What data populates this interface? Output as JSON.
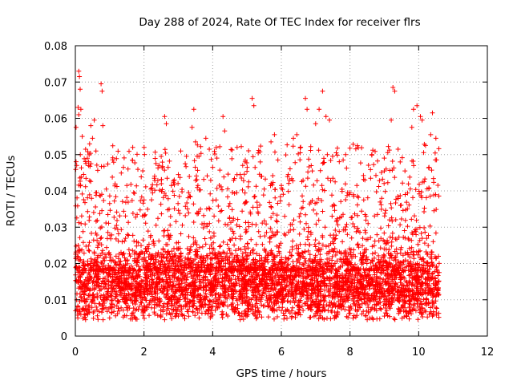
{
  "chart_data": {
    "type": "scatter",
    "title": "Day 288 of 2024, Rate Of TEC Index for receiver flrs",
    "xlabel": "GPS time / hours",
    "ylabel": "ROTI / TECUs",
    "xlim": [
      0,
      12
    ],
    "ylim": [
      0,
      0.08
    ],
    "x_ticks": [
      0,
      2,
      4,
      6,
      8,
      10,
      12
    ],
    "x_tick_labels": [
      "0",
      "2",
      "4",
      "6",
      "8",
      "10",
      "12"
    ],
    "y_ticks": [
      0,
      0.01,
      0.02,
      0.03,
      0.04,
      0.05,
      0.06,
      0.07,
      0.08
    ],
    "y_tick_labels": [
      "0",
      "0.01",
      "0.02",
      "0.03",
      "0.04",
      "0.05",
      "0.06",
      "0.07",
      "0.08"
    ],
    "grid": true,
    "marker": "+",
    "marker_color": "#ff0000",
    "series": [
      {
        "name": "ROTI",
        "x_range": [
          0,
          10.6
        ],
        "points": [
          [
            0.02,
            0.0575
          ],
          [
            0.04,
            0.047
          ],
          [
            0.08,
            0.063
          ],
          [
            0.1,
            0.073
          ],
          [
            0.12,
            0.0715
          ],
          [
            0.14,
            0.068
          ],
          [
            0.16,
            0.0625
          ],
          [
            0.1,
            0.061
          ],
          [
            0.2,
            0.055
          ],
          [
            0.3,
            0.0515
          ],
          [
            0.35,
            0.049
          ],
          [
            0.45,
            0.058
          ],
          [
            0.5,
            0.0545
          ],
          [
            0.55,
            0.0595
          ],
          [
            0.6,
            0.051
          ],
          [
            0.75,
            0.0695
          ],
          [
            0.78,
            0.0675
          ],
          [
            0.8,
            0.058
          ],
          [
            0.9,
            0.0405
          ],
          [
            1.0,
            0.0365
          ],
          [
            1.2,
            0.0305
          ],
          [
            1.4,
            0.0465
          ],
          [
            1.5,
            0.0415
          ],
          [
            1.7,
            0.0395
          ],
          [
            1.8,
            0.0335
          ],
          [
            2.0,
            0.0375
          ],
          [
            2.2,
            0.0405
          ],
          [
            2.3,
            0.0435
          ],
          [
            2.5,
            0.0495
          ],
          [
            2.6,
            0.0605
          ],
          [
            2.65,
            0.0585
          ],
          [
            2.7,
            0.0465
          ],
          [
            2.8,
            0.0415
          ],
          [
            3.0,
            0.0445
          ],
          [
            3.2,
            0.0475
          ],
          [
            3.3,
            0.0395
          ],
          [
            3.4,
            0.0575
          ],
          [
            3.45,
            0.0625
          ],
          [
            3.5,
            0.0535
          ],
          [
            3.6,
            0.0495
          ],
          [
            3.8,
            0.0545
          ],
          [
            3.9,
            0.0515
          ],
          [
            4.0,
            0.0465
          ],
          [
            4.1,
            0.0375
          ],
          [
            4.3,
            0.0605
          ],
          [
            4.35,
            0.0565
          ],
          [
            4.5,
            0.0365
          ],
          [
            4.7,
            0.0395
          ],
          [
            4.8,
            0.0445
          ],
          [
            4.95,
            0.0485
          ],
          [
            5.05,
            0.0425
          ],
          [
            5.15,
            0.0655
          ],
          [
            5.2,
            0.0635
          ],
          [
            5.3,
            0.0355
          ],
          [
            5.5,
            0.0405
          ],
          [
            5.7,
            0.0535
          ],
          [
            5.8,
            0.0555
          ],
          [
            5.9,
            0.0485
          ],
          [
            6.0,
            0.0415
          ],
          [
            6.2,
            0.0445
          ],
          [
            6.35,
            0.0545
          ],
          [
            6.45,
            0.0555
          ],
          [
            6.55,
            0.0505
          ],
          [
            6.7,
            0.0655
          ],
          [
            6.75,
            0.0625
          ],
          [
            6.9,
            0.0455
          ],
          [
            7.0,
            0.0585
          ],
          [
            7.1,
            0.0625
          ],
          [
            7.2,
            0.0675
          ],
          [
            7.3,
            0.0605
          ],
          [
            7.4,
            0.0595
          ],
          [
            7.5,
            0.0435
          ],
          [
            7.6,
            0.0505
          ],
          [
            7.8,
            0.0485
          ],
          [
            8.0,
            0.0395
          ],
          [
            8.2,
            0.0415
          ],
          [
            8.4,
            0.0375
          ],
          [
            8.6,
            0.0435
          ],
          [
            8.8,
            0.0335
          ],
          [
            9.0,
            0.0455
          ],
          [
            9.2,
            0.0595
          ],
          [
            9.25,
            0.0685
          ],
          [
            9.3,
            0.0675
          ],
          [
            9.4,
            0.0515
          ],
          [
            9.6,
            0.0455
          ],
          [
            9.8,
            0.0575
          ],
          [
            9.85,
            0.0625
          ],
          [
            9.95,
            0.0635
          ],
          [
            10.05,
            0.0605
          ],
          [
            10.1,
            0.0595
          ],
          [
            10.2,
            0.0525
          ],
          [
            10.3,
            0.0465
          ],
          [
            10.35,
            0.0555
          ],
          [
            10.4,
            0.0615
          ],
          [
            10.5,
            0.0545
          ],
          [
            0.3,
            0.0045
          ],
          [
            1.0,
            0.005
          ],
          [
            2.6,
            0.0045
          ],
          [
            4.8,
            0.0045
          ],
          [
            8.5,
            0.0045
          ],
          [
            10.4,
            0.0055
          ],
          [
            5.0,
            0.0055
          ],
          [
            3.0,
            0.0055
          ],
          [
            7.6,
            0.0055
          ],
          [
            9.0,
            0.0055
          ]
        ]
      }
    ]
  }
}
